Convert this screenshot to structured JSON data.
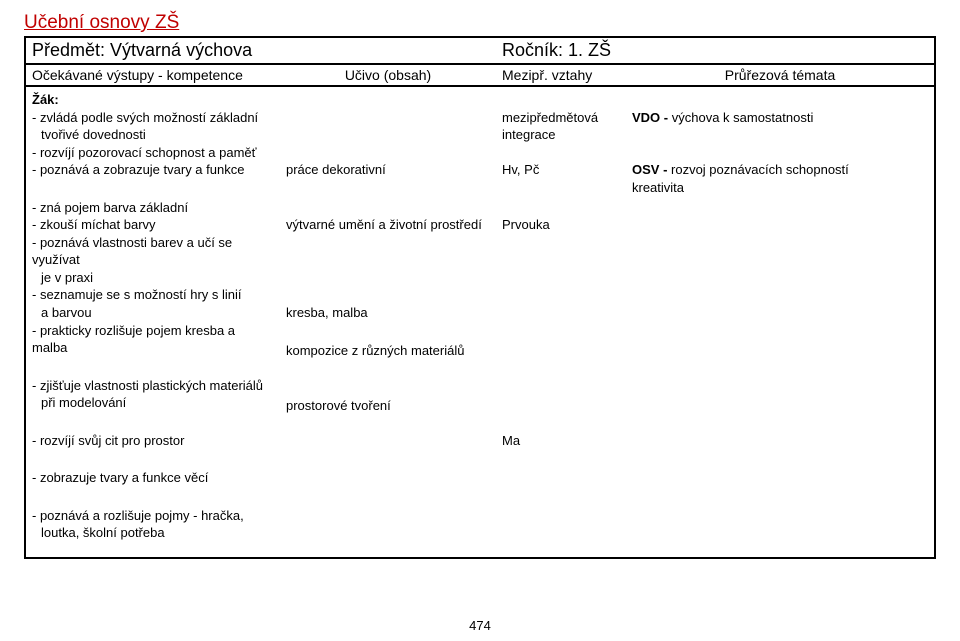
{
  "doc_title": "Učební osnovy ZŠ",
  "subject_label": "Předmět: Výtvarná výchova",
  "grade_label": "Ročník: 1. ZŠ",
  "columns": {
    "c1": "Očekávané výstupy - kompetence",
    "c2": "Učivo (obsah)",
    "c3": "Mezipř. vztahy",
    "c4": "Průřezová témata"
  },
  "col1": {
    "zak": "Žák:",
    "l1": "- zvládá podle svých možností základní",
    "l1b": "tvořivé dovednosti",
    "l2": "- rozvíjí pozorovací schopnost a paměť",
    "l3": "- poznává a zobrazuje tvary a funkce",
    "l4": "- zná pojem barva základní",
    "l5": "- zkouší míchat barvy",
    "l6": "- poznává vlastnosti barev a učí se využívat",
    "l6b": "je v praxi",
    "l7": "- seznamuje se s možností hry s linií",
    "l7b": "a barvou",
    "l8": "- prakticky rozlišuje pojem kresba a malba",
    "l9": "- zjišťuje vlastnosti plastických materiálů",
    "l9b": "při modelování",
    "l10": "- rozvíjí svůj cit pro prostor",
    "l11": "- zobrazuje tvary a funkce věcí",
    "l12": "- poznává a rozlišuje pojmy - hračka,",
    "l12b": "loutka, školní potřeba"
  },
  "col2": {
    "u1": "práce dekorativní",
    "u2": "výtvarné umění a životní prostředí",
    "u3": "kresba, malba",
    "u4": "kompozice z různých materiálů",
    "u5": "prostorové tvoření"
  },
  "col3": {
    "m1": "mezipředmětová",
    "m1b": "integrace",
    "m2": "Hv, Pč",
    "m3": "Prvouka",
    "m4": "Ma"
  },
  "col4": {
    "t1a": "VDO - ",
    "t1b": "výchova k samostatnosti",
    "t2a": "OSV - ",
    "t2b": "rozvoj poznávacích schopností",
    "t2c": "kreativita"
  },
  "page_number": "474",
  "colors": {
    "accent": "#c00000",
    "border": "#000000",
    "text": "#000000",
    "bg": "#ffffff"
  }
}
